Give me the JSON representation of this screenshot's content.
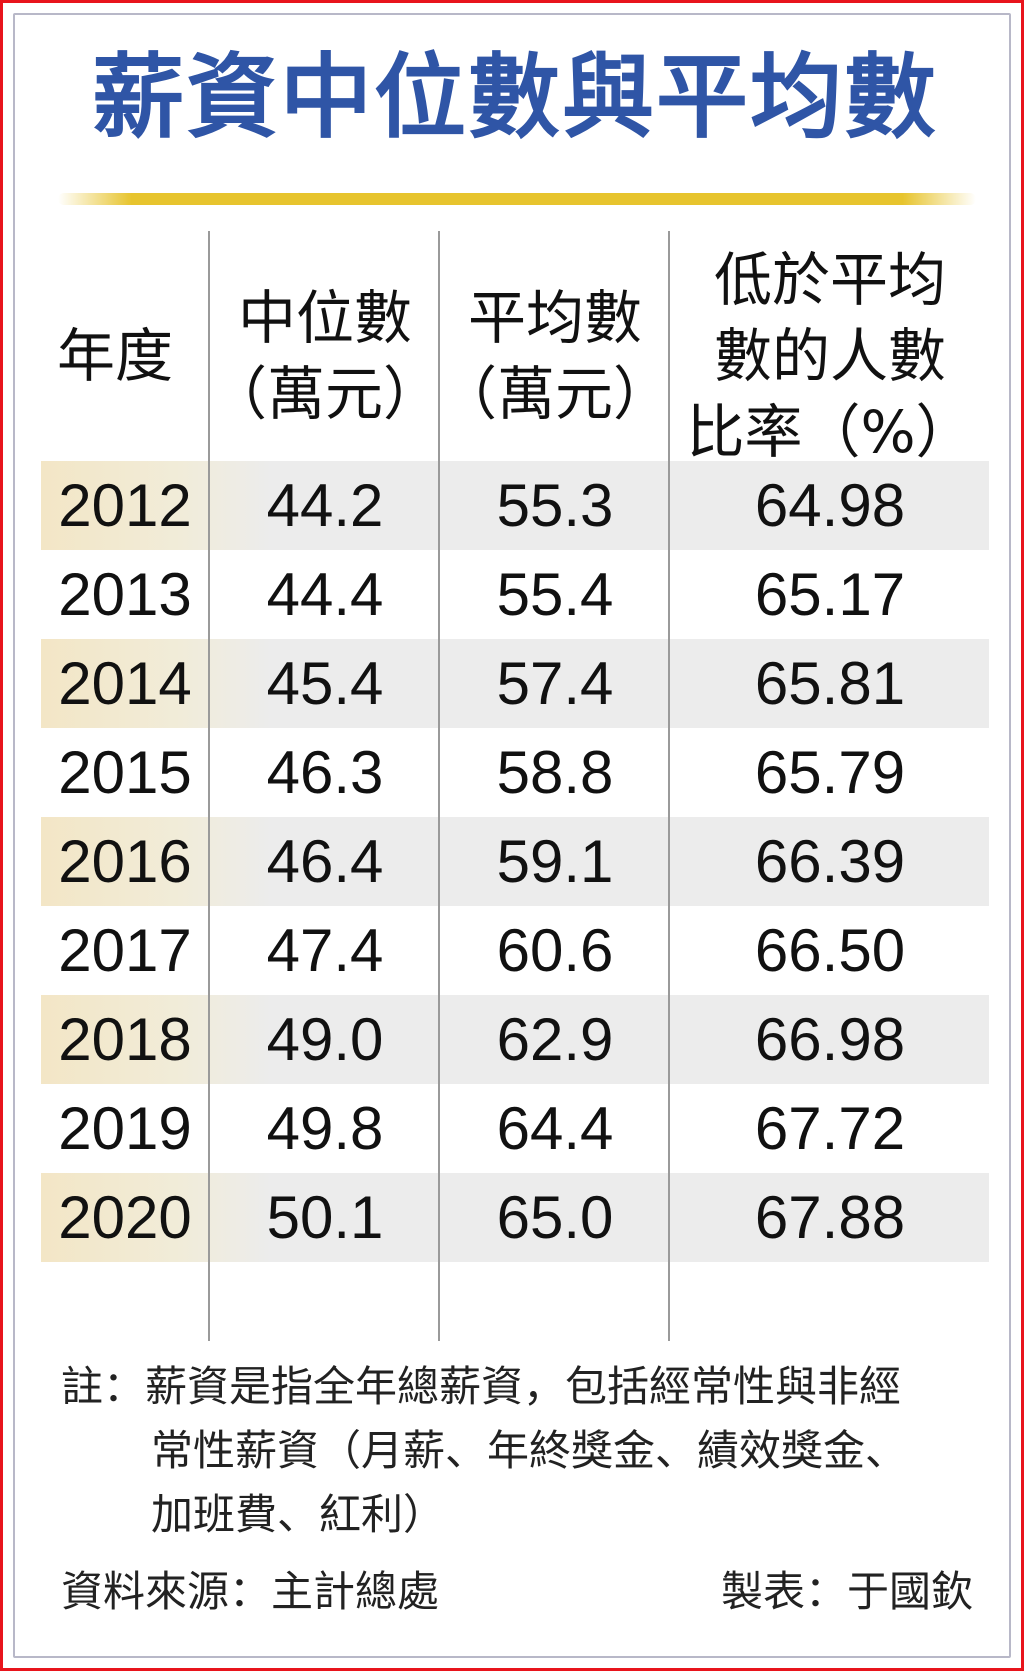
{
  "title": "薪資中位數與平均數",
  "table": {
    "headers": [
      [
        "年度"
      ],
      [
        "中位數",
        "（萬元）"
      ],
      [
        "平均數",
        "（萬元）"
      ],
      [
        "低於平均",
        "數的人數",
        "比率（%）"
      ]
    ],
    "rows": [
      {
        "year": "2012",
        "median": "44.2",
        "mean": "55.3",
        "below_pct": "64.98"
      },
      {
        "year": "2013",
        "median": "44.4",
        "mean": "55.4",
        "below_pct": "65.17"
      },
      {
        "year": "2014",
        "median": "45.4",
        "mean": "57.4",
        "below_pct": "65.81"
      },
      {
        "year": "2015",
        "median": "46.3",
        "mean": "58.8",
        "below_pct": "65.79"
      },
      {
        "year": "2016",
        "median": "46.4",
        "mean": "59.1",
        "below_pct": "66.39"
      },
      {
        "year": "2017",
        "median": "47.4",
        "mean": "60.6",
        "below_pct": "66.50"
      },
      {
        "year": "2018",
        "median": "49.0",
        "mean": "62.9",
        "below_pct": "66.98"
      },
      {
        "year": "2019",
        "median": "49.8",
        "mean": "64.4",
        "below_pct": "67.72"
      },
      {
        "year": "2020",
        "median": "50.1",
        "mean": "65.0",
        "below_pct": "67.88"
      }
    ]
  },
  "note": {
    "lines": [
      "註：薪資是指全年總薪資，包括經常性與非經",
      "常性薪資（月薪、年終獎金、績效獎金、",
      "加班費、紅利）"
    ]
  },
  "footer": {
    "source": "資料來源：主計總處",
    "maker": "製表：于國欽"
  },
  "colors": {
    "title": "#2f55a6",
    "accent_rule": "#e7c42e",
    "outer_border": "#e8141c",
    "row_shade": "#ececec",
    "row_shade_warm": "#f3e6c6"
  }
}
